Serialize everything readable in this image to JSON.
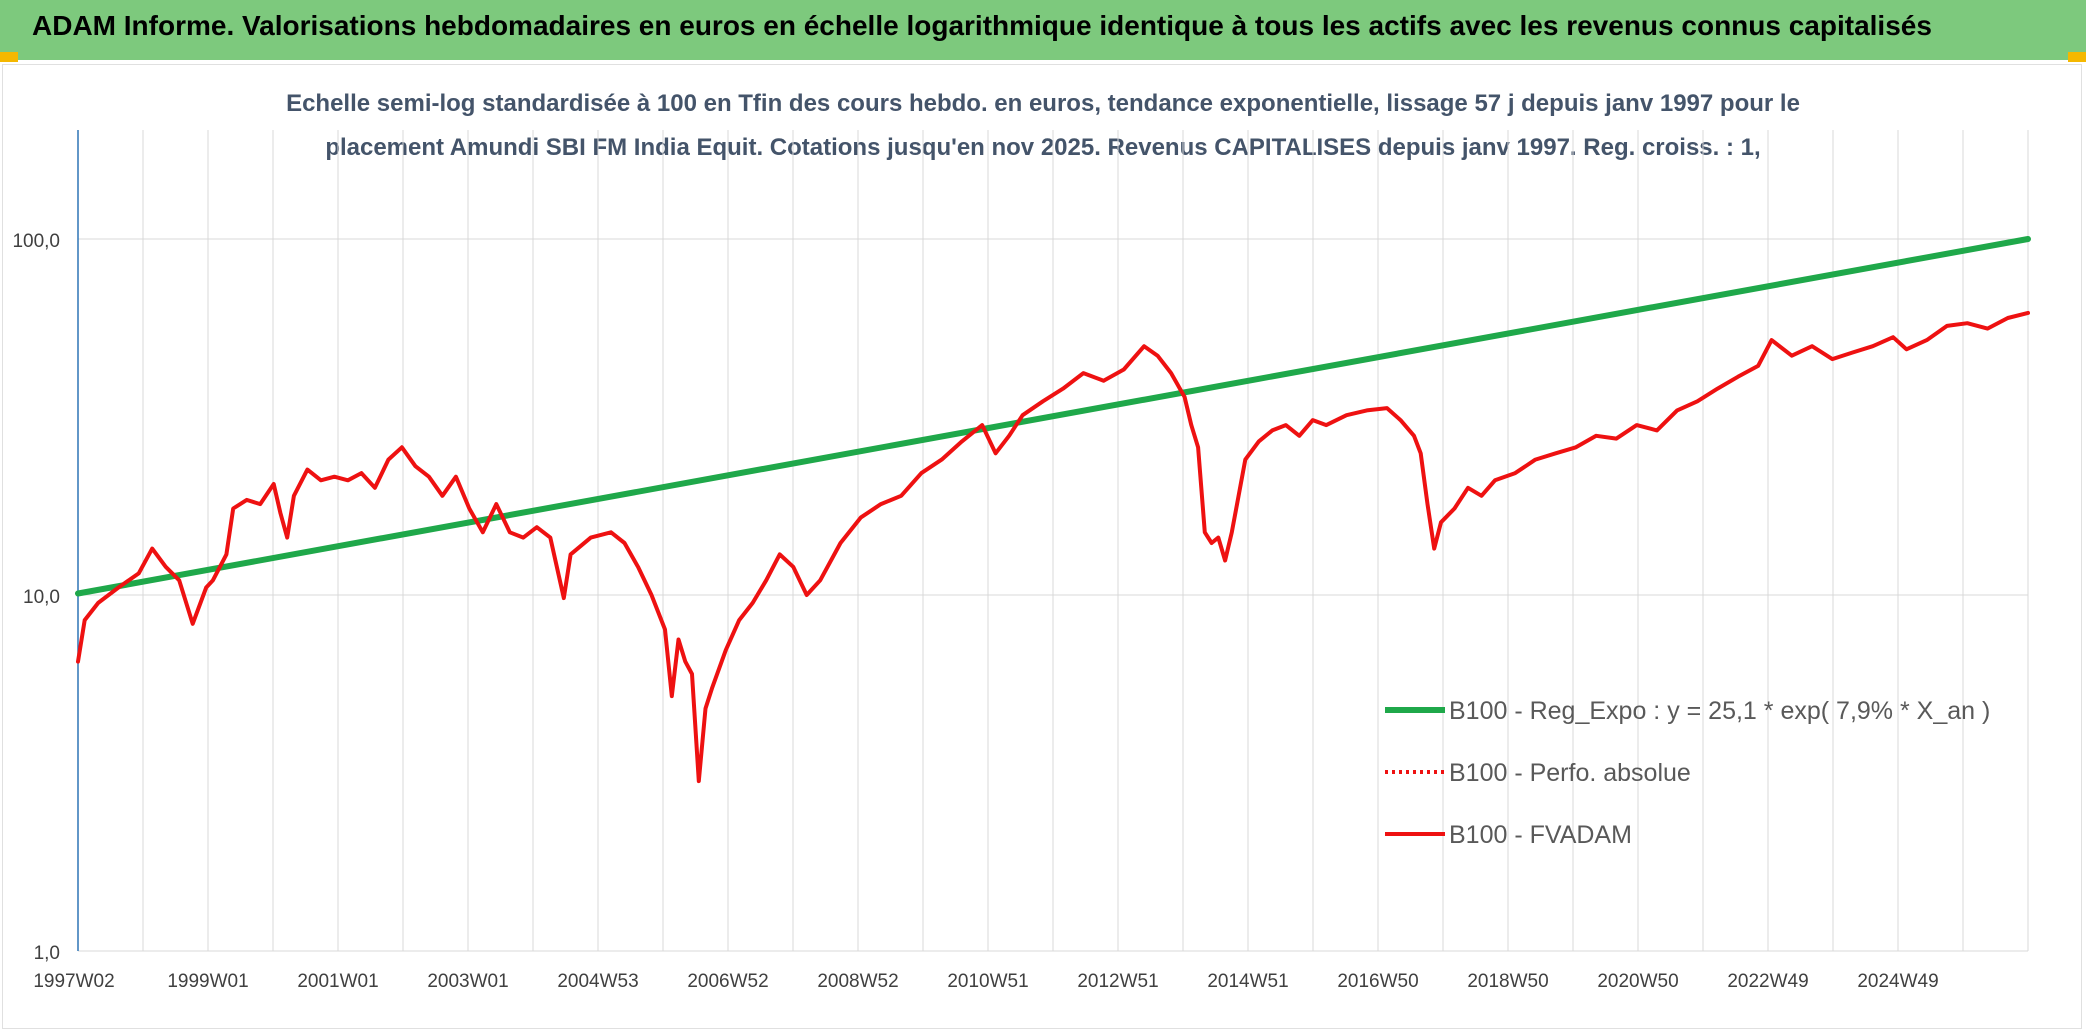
{
  "header": {
    "title": "ADAM Informe. Valorisations hebdomadaires en euros en échelle logarithmique identique à tous les actifs avec les revenus connus capitalisés"
  },
  "colors": {
    "header_bg": "#7dc97d",
    "trend": "#1fa84a",
    "fvadam": "#ee1111",
    "perfo": "#ee1111",
    "grid": "#d9d9d9",
    "text": "#404040",
    "subtitle": "#44546a"
  },
  "chart_data": {
    "type": "line",
    "title_lines": [
      "Echelle semi-log standardisée à 100 en Tfin des cours hebdo. en euros, tendance exponentielle, lissage 57 j depuis janv 1997 pour le",
      "placement Amundi SBI FM India Equit. Cotations jusqu'en nov 2025. Revenus CAPITALISES depuis janv 1997. Reg. croiss. : 1,"
    ],
    "yscale": "log",
    "ylim": [
      1,
      180
    ],
    "y_ticks": [
      "1,0",
      "10,0",
      "100,0"
    ],
    "x_ticks": [
      "1997W02",
      "1999W01",
      "2001W01",
      "2003W01",
      "2004W53",
      "2006W52",
      "2008W52",
      "2010W51",
      "2012W51",
      "2014W51",
      "2016W50",
      "2018W50",
      "2020W50",
      "2022W49",
      "2024W49"
    ],
    "x_range": [
      1997.0,
      2025.9
    ],
    "grid": true,
    "legend_position": "bottom-right",
    "series": [
      {
        "name": "B100 - Reg_Expo : y = 25,1 * exp( 7,9% *  X_an )",
        "style": "solid-thick",
        "points": [
          [
            1997.0,
            10.1
          ],
          [
            2025.9,
            100.0
          ]
        ]
      },
      {
        "name": "B100 - Perfo. absolue",
        "style": "dotted",
        "points": []
      },
      {
        "name": "B100 - FVADAM",
        "style": "solid",
        "points": [
          [
            1997.0,
            6.5
          ],
          [
            1997.1,
            8.5
          ],
          [
            1997.3,
            9.5
          ],
          [
            1997.6,
            10.5
          ],
          [
            1997.9,
            11.5
          ],
          [
            1998.1,
            13.5
          ],
          [
            1998.3,
            12.0
          ],
          [
            1998.5,
            11.0
          ],
          [
            1998.7,
            8.3
          ],
          [
            1998.9,
            10.5
          ],
          [
            1999.0,
            11.0
          ],
          [
            1999.2,
            13.0
          ],
          [
            1999.3,
            17.5
          ],
          [
            1999.5,
            18.5
          ],
          [
            1999.7,
            18.0
          ],
          [
            1999.9,
            20.5
          ],
          [
            2000.0,
            17.0
          ],
          [
            2000.1,
            14.5
          ],
          [
            2000.2,
            19.0
          ],
          [
            2000.4,
            22.5
          ],
          [
            2000.6,
            21.0
          ],
          [
            2000.8,
            21.5
          ],
          [
            2001.0,
            21.0
          ],
          [
            2001.2,
            22.0
          ],
          [
            2001.4,
            20.0
          ],
          [
            2001.6,
            24.0
          ],
          [
            2001.8,
            26.0
          ],
          [
            2002.0,
            23.0
          ],
          [
            2002.2,
            21.5
          ],
          [
            2002.4,
            19.0
          ],
          [
            2002.6,
            21.5
          ],
          [
            2002.8,
            17.5
          ],
          [
            2003.0,
            15.0
          ],
          [
            2003.2,
            18.0
          ],
          [
            2003.4,
            15.0
          ],
          [
            2003.6,
            14.5
          ],
          [
            2003.8,
            15.5
          ],
          [
            2004.0,
            14.5
          ],
          [
            2004.2,
            9.8
          ],
          [
            2004.3,
            13.0
          ],
          [
            2004.6,
            14.5
          ],
          [
            2004.9,
            15.0
          ],
          [
            2005.1,
            14.0
          ],
          [
            2005.3,
            12.0
          ],
          [
            2005.5,
            10.0
          ],
          [
            2005.7,
            8.0
          ],
          [
            2005.8,
            5.2
          ],
          [
            2005.9,
            7.5
          ],
          [
            2006.0,
            6.5
          ],
          [
            2006.1,
            6.0
          ],
          [
            2006.2,
            3.0
          ],
          [
            2006.3,
            4.8
          ],
          [
            2006.4,
            5.5
          ],
          [
            2006.6,
            7.0
          ],
          [
            2006.8,
            8.5
          ],
          [
            2007.0,
            9.5
          ],
          [
            2007.2,
            11.0
          ],
          [
            2007.4,
            13.0
          ],
          [
            2007.6,
            12.0
          ],
          [
            2007.8,
            10.0
          ],
          [
            2008.0,
            11.0
          ],
          [
            2008.3,
            14.0
          ],
          [
            2008.6,
            16.5
          ],
          [
            2008.9,
            18.0
          ],
          [
            2009.2,
            19.0
          ],
          [
            2009.5,
            22.0
          ],
          [
            2009.8,
            24.0
          ],
          [
            2010.1,
            27.0
          ],
          [
            2010.4,
            30.0
          ],
          [
            2010.6,
            25.0
          ],
          [
            2010.8,
            28.0
          ],
          [
            2011.0,
            32.0
          ],
          [
            2011.3,
            35.0
          ],
          [
            2011.6,
            38.0
          ],
          [
            2011.9,
            42.0
          ],
          [
            2012.2,
            40.0
          ],
          [
            2012.5,
            43.0
          ],
          [
            2012.8,
            50.0
          ],
          [
            2013.0,
            47.0
          ],
          [
            2013.2,
            42.0
          ],
          [
            2013.4,
            36.0
          ],
          [
            2013.5,
            30.0
          ],
          [
            2013.6,
            26.0
          ],
          [
            2013.7,
            15.0
          ],
          [
            2013.8,
            14.0
          ],
          [
            2013.9,
            14.5
          ],
          [
            2014.0,
            12.5
          ],
          [
            2014.1,
            15.0
          ],
          [
            2014.2,
            19.0
          ],
          [
            2014.3,
            24.0
          ],
          [
            2014.5,
            27.0
          ],
          [
            2014.7,
            29.0
          ],
          [
            2014.9,
            30.0
          ],
          [
            2015.1,
            28.0
          ],
          [
            2015.3,
            31.0
          ],
          [
            2015.5,
            30.0
          ],
          [
            2015.8,
            32.0
          ],
          [
            2016.1,
            33.0
          ],
          [
            2016.4,
            33.5
          ],
          [
            2016.6,
            31.0
          ],
          [
            2016.8,
            28.0
          ],
          [
            2016.9,
            25.0
          ],
          [
            2017.0,
            18.0
          ],
          [
            2017.1,
            13.5
          ],
          [
            2017.2,
            16.0
          ],
          [
            2017.4,
            17.5
          ],
          [
            2017.6,
            20.0
          ],
          [
            2017.8,
            19.0
          ],
          [
            2018.0,
            21.0
          ],
          [
            2018.3,
            22.0
          ],
          [
            2018.6,
            24.0
          ],
          [
            2018.9,
            25.0
          ],
          [
            2019.2,
            26.0
          ],
          [
            2019.5,
            28.0
          ],
          [
            2019.8,
            27.5
          ],
          [
            2020.1,
            30.0
          ],
          [
            2020.4,
            29.0
          ],
          [
            2020.7,
            33.0
          ],
          [
            2021.0,
            35.0
          ],
          [
            2021.3,
            38.0
          ],
          [
            2021.6,
            41.0
          ],
          [
            2021.9,
            44.0
          ],
          [
            2022.1,
            52.0
          ],
          [
            2022.4,
            47.0
          ],
          [
            2022.7,
            50.0
          ],
          [
            2023.0,
            46.0
          ],
          [
            2023.3,
            48.0
          ],
          [
            2023.6,
            50.0
          ],
          [
            2023.9,
            53.0
          ],
          [
            2024.1,
            49.0
          ],
          [
            2024.4,
            52.0
          ],
          [
            2024.7,
            57.0
          ],
          [
            2025.0,
            58.0
          ],
          [
            2025.3,
            56.0
          ],
          [
            2025.6,
            60.0
          ],
          [
            2025.9,
            62.0
          ]
        ]
      }
    ]
  }
}
